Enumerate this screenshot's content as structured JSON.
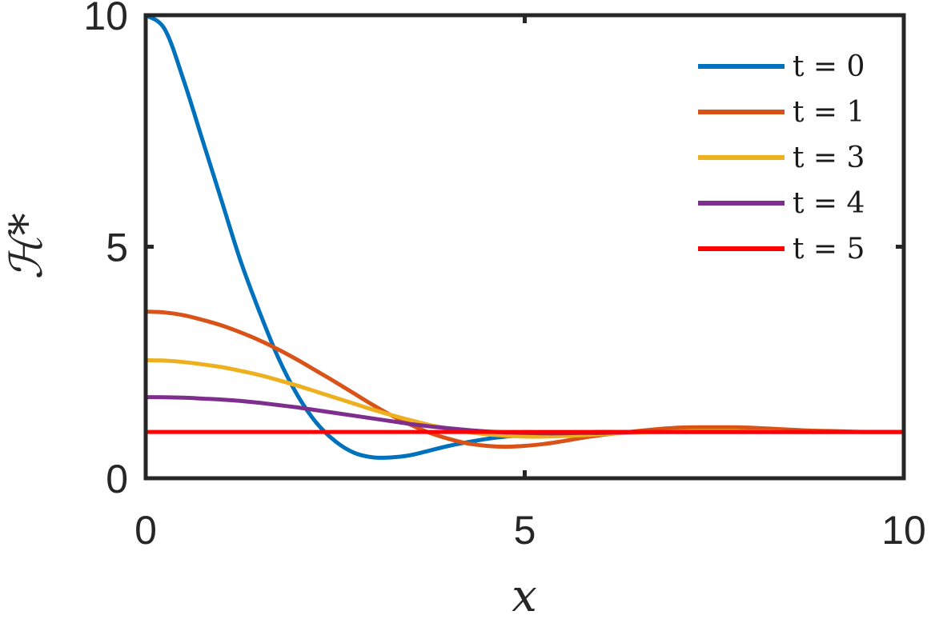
{
  "chart_data": {
    "type": "line",
    "xlabel": "x",
    "ylabel": "ℋ*",
    "xlim": [
      0,
      10
    ],
    "ylim": [
      0,
      10
    ],
    "xticks": [
      0,
      5,
      10
    ],
    "yticks": [
      0,
      5,
      10
    ],
    "xtick_labels": [
      "0",
      "5",
      "10"
    ],
    "ytick_labels": [
      "0",
      "5",
      "10"
    ],
    "grid": false,
    "legend_position": "top-right",
    "x": [
      0,
      0.25,
      0.5,
      0.75,
      1,
      1.25,
      1.5,
      1.75,
      2,
      2.25,
      2.5,
      2.75,
      3,
      3.25,
      3.5,
      3.75,
      4,
      4.25,
      4.5,
      4.75,
      5,
      5.25,
      5.5,
      5.75,
      6,
      6.25,
      6.5,
      6.75,
      7,
      7.25,
      7.5,
      7.75,
      8,
      8.25,
      8.5,
      8.75,
      9,
      9.25,
      9.5,
      9.75,
      10
    ],
    "series": [
      {
        "name": "t = 0",
        "color": "#0072BD",
        "values": [
          10,
          9.7,
          8.6,
          7.3,
          6.0,
          4.7,
          3.6,
          2.6,
          1.8,
          1.2,
          0.8,
          0.55,
          0.45,
          0.45,
          0.5,
          0.6,
          0.7,
          0.78,
          0.85,
          0.9,
          0.93,
          0.96,
          0.98,
          0.99,
          1.0,
          1.0,
          1.0,
          1.0,
          1.0,
          1.0,
          1.0,
          1.0,
          1.0,
          1.0,
          1.0,
          1.0,
          1.0,
          1.0,
          1.0,
          1.0,
          1.0
        ]
      },
      {
        "name": "t = 1",
        "color": "#D95319",
        "values": [
          3.6,
          3.58,
          3.52,
          3.42,
          3.3,
          3.15,
          2.98,
          2.78,
          2.56,
          2.32,
          2.08,
          1.83,
          1.58,
          1.35,
          1.15,
          0.98,
          0.85,
          0.75,
          0.7,
          0.68,
          0.7,
          0.74,
          0.8,
          0.87,
          0.93,
          0.98,
          1.02,
          1.06,
          1.09,
          1.1,
          1.1,
          1.1,
          1.09,
          1.07,
          1.05,
          1.03,
          1.02,
          1.01,
          1.0,
          1.0,
          1.0
        ]
      },
      {
        "name": "t = 3",
        "color": "#EDB120",
        "values": [
          2.55,
          2.54,
          2.51,
          2.46,
          2.4,
          2.32,
          2.23,
          2.12,
          2.0,
          1.87,
          1.74,
          1.61,
          1.48,
          1.36,
          1.25,
          1.15,
          1.07,
          1.0,
          0.95,
          0.92,
          0.9,
          0.9,
          0.91,
          0.93,
          0.95,
          0.97,
          0.99,
          1.0,
          1.01,
          1.02,
          1.02,
          1.02,
          1.01,
          1.01,
          1.0,
          1.0,
          1.0,
          1.0,
          1.0,
          1.0,
          1.0
        ]
      },
      {
        "name": "t = 4",
        "color": "#7E2F8E",
        "values": [
          1.75,
          1.75,
          1.74,
          1.72,
          1.7,
          1.67,
          1.63,
          1.58,
          1.53,
          1.47,
          1.41,
          1.35,
          1.29,
          1.23,
          1.17,
          1.12,
          1.08,
          1.04,
          1.01,
          0.99,
          0.98,
          0.97,
          0.97,
          0.98,
          0.98,
          0.99,
          1.0,
          1.0,
          1.0,
          1.0,
          1.0,
          1.0,
          1.0,
          1.0,
          1.0,
          1.0,
          1.0,
          1.0,
          1.0,
          1.0,
          1.0
        ]
      },
      {
        "name": "t = 5",
        "color": "#FF0000",
        "values": [
          1,
          1,
          1,
          1,
          1,
          1,
          1,
          1,
          1,
          1,
          1,
          1,
          1,
          1,
          1,
          1,
          1,
          1,
          1,
          1,
          1,
          1,
          1,
          1,
          1,
          1,
          1,
          1,
          1,
          1,
          1,
          1,
          1,
          1,
          1,
          1,
          1,
          1,
          1,
          1,
          1
        ]
      }
    ]
  }
}
